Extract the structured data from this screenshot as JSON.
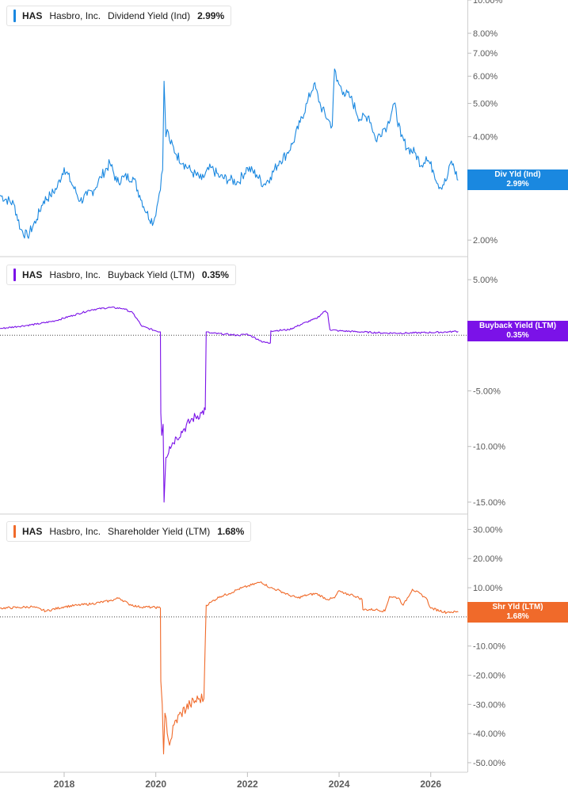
{
  "chart_data": [
    {
      "type": "line",
      "legend": {
        "ticker": "HAS",
        "company": "Hasbro, Inc.",
        "metric": "Dividend Yield (Ind)",
        "value": "2.99%"
      },
      "tag": {
        "label": "Div Yld (Ind)",
        "value": "2.99%"
      },
      "color": "#1a88e0",
      "scale": "log",
      "ylim": [
        1.8,
        10.0
      ],
      "yticks": [
        {
          "v": 2,
          "label": "2.00%"
        },
        {
          "v": 3,
          "label": "3.00%"
        },
        {
          "v": 4,
          "label": "4.00%"
        },
        {
          "v": 5,
          "label": "5.00%"
        },
        {
          "v": 6,
          "label": "6.00%"
        },
        {
          "v": 7,
          "label": "7.00%"
        },
        {
          "v": 8,
          "label": "8.00%"
        },
        {
          "v": 10,
          "label": "10.00%"
        }
      ],
      "last_value": 2.99,
      "series": [
        {
          "x": [
            2016.6,
            2016.9,
            2017.05,
            2017.2,
            2017.4,
            2017.55,
            2017.7,
            2017.85,
            2018.0,
            2018.15,
            2018.35,
            2018.5,
            2018.65,
            2018.8,
            2019.0,
            2019.15,
            2019.3,
            2019.5,
            2019.65,
            2019.8,
            2019.95,
            2020.05,
            2020.15,
            2020.18,
            2020.22,
            2020.25,
            2020.3,
            2020.45,
            2020.6,
            2020.8,
            2021.0,
            2021.2,
            2021.4,
            2021.6,
            2021.8,
            2022.0,
            2022.2,
            2022.35,
            2022.5,
            2022.7,
            2022.85,
            2023.0,
            2023.15,
            2023.3,
            2023.45,
            2023.6,
            2023.75,
            2023.85,
            2023.9,
            2023.95,
            2024.1,
            2024.25,
            2024.45,
            2024.65,
            2024.8,
            2024.95,
            2025.05,
            2025.2,
            2025.35,
            2025.5,
            2025.65,
            2025.8,
            2025.9,
            2026.05,
            2026.2,
            2026.35,
            2026.45,
            2026.6
          ],
          "values": [
            2.7,
            2.55,
            2.15,
            2.05,
            2.3,
            2.6,
            2.7,
            2.85,
            3.25,
            2.95,
            2.6,
            2.7,
            2.8,
            3.05,
            3.35,
            2.95,
            3.05,
            3.05,
            2.7,
            2.4,
            2.25,
            2.6,
            3.2,
            5.8,
            4.0,
            4.2,
            3.9,
            3.55,
            3.35,
            3.15,
            3.0,
            3.25,
            3.05,
            3.0,
            2.95,
            3.25,
            3.1,
            2.9,
            3.05,
            3.4,
            3.55,
            3.85,
            4.4,
            5.0,
            5.7,
            4.9,
            4.5,
            4.3,
            6.3,
            5.8,
            5.4,
            5.2,
            4.5,
            4.6,
            3.9,
            4.2,
            4.3,
            5.0,
            4.0,
            3.7,
            3.6,
            3.3,
            3.5,
            3.2,
            2.85,
            3.0,
            3.4,
            2.99
          ]
        }
      ]
    },
    {
      "type": "line",
      "legend": {
        "ticker": "HAS",
        "company": "Hasbro, Inc.",
        "metric": "Buyback Yield (LTM)",
        "value": "0.35%"
      },
      "tag": {
        "label": "Buyback Yield (LTM)",
        "value": "0.35%"
      },
      "color": "#7b12e8",
      "scale": "linear",
      "ylim": [
        -16.0,
        7.0
      ],
      "yticks": [
        {
          "v": 5,
          "label": "5.00%"
        },
        {
          "v": 0,
          "label": "0.00%"
        },
        {
          "v": -5,
          "label": "-5.00%"
        },
        {
          "v": -10,
          "label": "-10.00%"
        },
        {
          "v": -15,
          "label": "-15.00%"
        }
      ],
      "last_value": 0.35,
      "series": [
        {
          "x": [
            2016.6,
            2017.0,
            2017.4,
            2017.8,
            2018.2,
            2018.6,
            2019.0,
            2019.3,
            2019.5,
            2019.7,
            2020.0,
            2020.1,
            2020.11,
            2020.13,
            2020.16,
            2020.18,
            2020.22,
            2020.3,
            2020.45,
            2020.6,
            2020.8,
            2021.0,
            2021.08,
            2021.1,
            2021.2,
            2021.5,
            2021.8,
            2022.0,
            2022.05,
            2022.3,
            2022.31,
            2022.5,
            2022.51,
            2022.9,
            2023.3,
            2023.5,
            2023.7,
            2023.75,
            2023.8,
            2024.0,
            2024.5,
            2025.0,
            2025.5,
            2026.0,
            2026.4,
            2026.5,
            2026.6
          ],
          "values": [
            0.6,
            0.8,
            1.0,
            1.3,
            1.8,
            2.3,
            2.5,
            2.4,
            2.0,
            0.8,
            0.4,
            0.3,
            -7.0,
            -9.0,
            -8.0,
            -15.0,
            -11.0,
            -10.0,
            -9.2,
            -8.5,
            -7.5,
            -7.0,
            -6.7,
            0.3,
            0.2,
            0.1,
            0.0,
            0.1,
            0.0,
            -0.5,
            -0.6,
            -0.7,
            0.4,
            0.5,
            1.2,
            1.5,
            2.2,
            2.0,
            0.5,
            0.4,
            0.3,
            0.2,
            0.2,
            0.25,
            0.3,
            0.35,
            0.35
          ]
        }
      ]
    },
    {
      "type": "line",
      "legend": {
        "ticker": "HAS",
        "company": "Hasbro, Inc.",
        "metric": "Shareholder Yield (LTM)",
        "value": "1.68%"
      },
      "tag": {
        "label": "Shr Yld (LTM)",
        "value": "1.68%"
      },
      "color": "#f06a2a",
      "scale": "linear",
      "ylim": [
        -53.0,
        35.0
      ],
      "yticks": [
        {
          "v": 30,
          "label": "30.00%"
        },
        {
          "v": 20,
          "label": "20.00%"
        },
        {
          "v": 10,
          "label": "10.00%"
        },
        {
          "v": 0,
          "label": "0.00%"
        },
        {
          "v": -10,
          "label": "-10.00%"
        },
        {
          "v": -20,
          "label": "-20.00%"
        },
        {
          "v": -30,
          "label": "-30.00%"
        },
        {
          "v": -40,
          "label": "-40.00%"
        },
        {
          "v": -50,
          "label": "-50.00%"
        }
      ],
      "last_value": 1.68,
      "series": [
        {
          "x": [
            2016.6,
            2017.0,
            2017.3,
            2017.6,
            2018.0,
            2018.3,
            2018.6,
            2019.0,
            2019.2,
            2019.4,
            2019.6,
            2019.9,
            2020.05,
            2020.1,
            2020.11,
            2020.14,
            2020.17,
            2020.2,
            2020.3,
            2020.4,
            2020.55,
            2020.75,
            2020.95,
            2021.05,
            2021.1,
            2021.2,
            2021.4,
            2021.6,
            2021.8,
            2022.0,
            2022.3,
            2022.5,
            2022.7,
            2022.9,
            2023.1,
            2023.3,
            2023.5,
            2023.75,
            2023.9,
            2024.0,
            2024.1,
            2024.3,
            2024.5,
            2024.52,
            2024.8,
            2025.0,
            2025.1,
            2025.3,
            2025.4,
            2025.6,
            2025.85,
            2025.9,
            2026.0,
            2026.35,
            2026.4,
            2026.6
          ],
          "values": [
            3.0,
            3.2,
            3.5,
            2.0,
            3.5,
            4.0,
            4.5,
            5.5,
            6.5,
            4.5,
            3.5,
            3.3,
            3.2,
            3.0,
            -22.0,
            -30.0,
            -47.0,
            -33.0,
            -44.0,
            -37.0,
            -33.0,
            -30.0,
            -28.0,
            -28.0,
            4.0,
            5.0,
            7.0,
            8.0,
            9.5,
            10.5,
            12.0,
            10.0,
            9.0,
            7.5,
            6.5,
            7.5,
            8.0,
            6.0,
            6.5,
            9.0,
            8.0,
            7.5,
            6.0,
            2.5,
            2.5,
            2.0,
            7.0,
            6.5,
            4.0,
            9.5,
            7.0,
            6.5,
            3.0,
            1.5,
            1.7,
            1.68
          ]
        }
      ]
    }
  ],
  "xaxis": {
    "range": [
      2016.6,
      2026.8
    ],
    "ticks": [
      {
        "v": 2018,
        "label": "2018"
      },
      {
        "v": 2020,
        "label": "2020"
      },
      {
        "v": 2022,
        "label": "2022"
      },
      {
        "v": 2024,
        "label": "2024"
      },
      {
        "v": 2026,
        "label": "2026"
      }
    ]
  }
}
